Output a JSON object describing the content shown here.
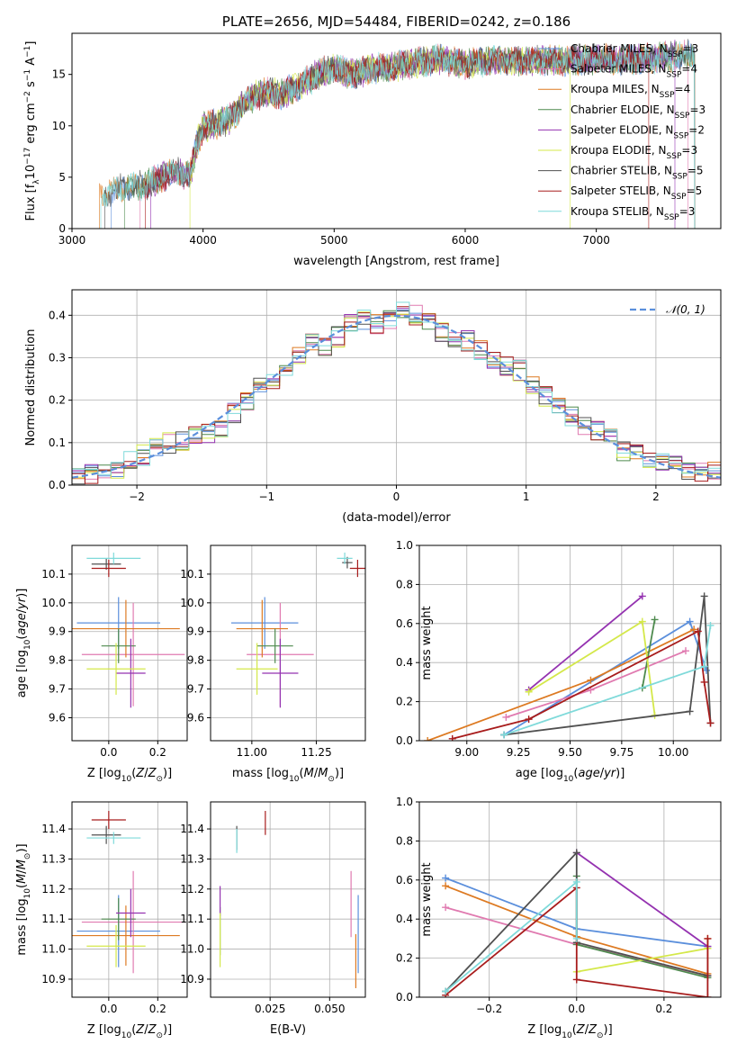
{
  "chart_data": [
    {
      "type": "line",
      "title": "PLATE=2656, MJD=54484, FIBERID=0242, z=0.186",
      "xlabel": "wavelength [Angstrom, rest frame]",
      "ylabel": "Flux [fλ10⁻¹⁷ erg cm⁻² s⁻¹ A⁻¹]",
      "xlim": [
        3000,
        7950
      ],
      "ylim": [
        0,
        19
      ],
      "xticks": [
        "3000",
        "4000",
        "5000",
        "6000",
        "7000"
      ],
      "yticks": [
        "0",
        "5",
        "10",
        "15"
      ],
      "legend_position": "right",
      "spectrum_envelope": {
        "x": [
          3210,
          3300,
          3400,
          3500,
          3600,
          3700,
          3800,
          3900,
          3950,
          4000,
          4100,
          4200,
          4300,
          4400,
          4500,
          4600,
          4700,
          4800,
          4900,
          5000,
          5100,
          5200,
          5300,
          5400,
          5500,
          5600,
          5700,
          5800,
          5900,
          6000,
          6200,
          6400,
          6600,
          6800,
          7000,
          7200,
          7400,
          7600,
          7750
        ],
        "y": [
          3.5,
          3.6,
          3.9,
          4.1,
          4.4,
          5.1,
          5.6,
          5.1,
          8.2,
          9.8,
          10.2,
          10.6,
          12.0,
          13.0,
          13.2,
          13.1,
          13.7,
          14.4,
          15.2,
          15.6,
          15.1,
          15.2,
          15.6,
          15.6,
          15.9,
          16.1,
          16.3,
          16.5,
          16.3,
          16.0,
          16.4,
          16.3,
          16.4,
          16.3,
          16.5,
          16.4,
          16.5,
          16.8,
          17.0
        ]
      },
      "series": [
        {
          "name": "Chabrier MILES",
          "nssp": "3",
          "color": "#5b8fdc"
        },
        {
          "name": "Salpeter MILES",
          "nssp": "4",
          "color": "#e07ab0"
        },
        {
          "name": "Kroupa MILES",
          "nssp": "4",
          "color": "#dd7a22"
        },
        {
          "name": "Chabrier ELODIE",
          "nssp": "3",
          "color": "#4e8a4e"
        },
        {
          "name": "Salpeter ELODIE",
          "nssp": "2",
          "color": "#9432b0"
        },
        {
          "name": "Kroupa ELODIE",
          "nssp": "3",
          "color": "#d4e84a"
        },
        {
          "name": "Chabrier STELIB",
          "nssp": "5",
          "color": "#505050"
        },
        {
          "name": "Salpeter STELIB",
          "nssp": "5",
          "color": "#a81c1c"
        },
        {
          "name": "Kroupa STELIB",
          "nssp": "3",
          "color": "#7fdada"
        }
      ]
    },
    {
      "type": "line",
      "title": "",
      "xlabel": "(data-model)/error",
      "ylabel": "Normed distribution",
      "xlim": [
        -2.5,
        2.5
      ],
      "ylim": [
        0,
        0.46
      ],
      "xticks": [
        "−2",
        "−1",
        "0",
        "1",
        "2"
      ],
      "yticks": [
        "0.0",
        "0.1",
        "0.2",
        "0.3",
        "0.4"
      ],
      "grid": true,
      "legend_position": "top-right",
      "reference_curve": "𝒩(0, 1)",
      "histogram_bin_edges": [
        -2.5,
        -2.4,
        -2.3,
        -2.2,
        -2.1,
        -2.0,
        -1.9,
        -1.8,
        -1.7,
        -1.6,
        -1.5,
        -1.4,
        -1.3,
        -1.2,
        -1.1,
        -1.0,
        -0.9,
        -0.8,
        -0.7,
        -0.6,
        -0.5,
        -0.4,
        -0.3,
        -0.2,
        -0.1,
        0.0,
        0.1,
        0.2,
        0.3,
        0.4,
        0.5,
        0.6,
        0.7,
        0.8,
        0.9,
        1.0,
        1.1,
        1.2,
        1.3,
        1.4,
        1.5,
        1.6,
        1.7,
        1.8,
        1.9,
        2.0,
        2.1,
        2.2,
        2.3,
        2.4,
        2.5
      ],
      "histogram_mean_values": [
        0.022,
        0.025,
        0.032,
        0.04,
        0.055,
        0.07,
        0.085,
        0.1,
        0.105,
        0.12,
        0.12,
        0.13,
        0.17,
        0.2,
        0.23,
        0.25,
        0.28,
        0.3,
        0.34,
        0.33,
        0.35,
        0.38,
        0.39,
        0.38,
        0.39,
        0.41,
        0.4,
        0.39,
        0.36,
        0.35,
        0.34,
        0.32,
        0.3,
        0.28,
        0.27,
        0.24,
        0.21,
        0.19,
        0.16,
        0.14,
        0.13,
        0.11,
        0.08,
        0.07,
        0.06,
        0.05,
        0.045,
        0.035,
        0.03,
        0.035
      ]
    },
    {
      "type": "scatter",
      "title": "",
      "xlabel": "Z [log₁₀(Z/Z⊙)]",
      "ylabel": "age  [log₁₀(age/yr)]",
      "xlim": [
        -0.15,
        0.32
      ],
      "ylim": [
        9.52,
        10.2
      ],
      "xticks": [
        "0.0",
        "0.2"
      ],
      "yticks": [
        "9.6",
        "9.7",
        "9.8",
        "9.9",
        "10.0",
        "10.1"
      ],
      "grid": true,
      "points": [
        {
          "series": "Chabrier MILES",
          "x": 0.04,
          "y": 9.93,
          "xerr": 0.17,
          "yerr": 0.09
        },
        {
          "series": "Salpeter MILES",
          "x": 0.1,
          "y": 9.82,
          "xerr": 0.21,
          "yerr": 0.18
        },
        {
          "series": "Kroupa MILES",
          "x": 0.07,
          "y": 9.91,
          "xerr": 0.22,
          "yerr": 0.1
        },
        {
          "series": "Chabrier ELODIE",
          "x": 0.04,
          "y": 9.85,
          "xerr": 0.07,
          "yerr": 0.06
        },
        {
          "series": "Salpeter ELODIE",
          "x": 0.09,
          "y": 9.755,
          "xerr": 0.06,
          "yerr": 0.12
        },
        {
          "series": "Kroupa ELODIE",
          "x": 0.03,
          "y": 9.77,
          "xerr": 0.12,
          "yerr": 0.09
        },
        {
          "series": "Chabrier STELIB",
          "x": -0.01,
          "y": 10.135,
          "xerr": 0.06,
          "yerr": 0.02
        },
        {
          "series": "Salpeter STELIB",
          "x": 0.0,
          "y": 10.12,
          "xerr": 0.07,
          "yerr": 0.03
        },
        {
          "series": "Kroupa STELIB",
          "x": 0.02,
          "y": 10.155,
          "xerr": 0.11,
          "yerr": 0.02
        }
      ]
    },
    {
      "type": "scatter",
      "title": "",
      "xlabel": "mass [log₁₀(M/M⊙)]",
      "ylabel": "",
      "xlim": [
        10.84,
        11.44
      ],
      "ylim": [
        9.52,
        10.2
      ],
      "xticks": [
        "11.00",
        "11.25"
      ],
      "yticks": [
        "9.6",
        "9.7",
        "9.8",
        "9.9",
        "10.0",
        "10.1"
      ],
      "grid": true,
      "points": [
        {
          "series": "Chabrier MILES",
          "x": 11.05,
          "y": 9.93,
          "xerr": 0.13,
          "yerr": 0.09
        },
        {
          "series": "Salpeter MILES",
          "x": 11.11,
          "y": 9.82,
          "xerr": 0.13,
          "yerr": 0.18
        },
        {
          "series": "Kroupa MILES",
          "x": 11.04,
          "y": 9.91,
          "xerr": 0.1,
          "yerr": 0.1
        },
        {
          "series": "Chabrier ELODIE",
          "x": 11.09,
          "y": 9.85,
          "xerr": 0.07,
          "yerr": 0.06
        },
        {
          "series": "Salpeter ELODIE",
          "x": 11.11,
          "y": 9.755,
          "xerr": 0.07,
          "yerr": 0.12
        },
        {
          "series": "Kroupa ELODIE",
          "x": 11.02,
          "y": 9.77,
          "xerr": 0.08,
          "yerr": 0.09
        },
        {
          "series": "Chabrier STELIB",
          "x": 11.37,
          "y": 10.14,
          "xerr": 0.02,
          "yerr": 0.02
        },
        {
          "series": "Salpeter STELIB",
          "x": 11.41,
          "y": 10.12,
          "xerr": 0.03,
          "yerr": 0.03
        },
        {
          "series": "Kroupa STELIB",
          "x": 11.36,
          "y": 10.155,
          "xerr": 0.03,
          "yerr": 0.02
        }
      ]
    },
    {
      "type": "line",
      "title": "",
      "xlabel": "age  [log₁₀(age/yr)]",
      "ylabel": "mass weight",
      "xlim": [
        8.77,
        10.23
      ],
      "ylim": [
        0,
        1
      ],
      "xticks": [
        "9.00",
        "9.25",
        "9.50",
        "9.75",
        "10.00"
      ],
      "yticks": [
        "0.0",
        "0.2",
        "0.4",
        "0.6",
        "0.8",
        "1.0"
      ],
      "grid": true,
      "series": [
        {
          "name": "Chabrier MILES",
          "x": [
            9.18,
            10.08,
            10.16
          ],
          "y": [
            0.03,
            0.61,
            0.36
          ]
        },
        {
          "name": "Salpeter MILES",
          "x": [
            9.19,
            9.6,
            10.06
          ],
          "y": [
            0.12,
            0.26,
            0.46
          ]
        },
        {
          "name": "Kroupa MILES",
          "x": [
            8.81,
            9.6,
            10.1
          ],
          "y": [
            0.0,
            0.31,
            0.57
          ]
        },
        {
          "name": "Chabrier ELODIE",
          "x": [
            9.85,
            9.91
          ],
          "y": [
            0.27,
            0.62
          ]
        },
        {
          "name": "Salpeter ELODIE",
          "x": [
            9.3,
            9.85
          ],
          "y": [
            0.26,
            0.74
          ]
        },
        {
          "name": "Kroupa ELODIE",
          "x": [
            9.3,
            9.85,
            9.91
          ],
          "y": [
            0.25,
            0.61,
            0.13
          ]
        },
        {
          "name": "Chabrier STELIB",
          "x": [
            9.18,
            10.08,
            10.15,
            10.18
          ],
          "y": [
            0.03,
            0.15,
            0.74,
            0.09
          ]
        },
        {
          "name": "Salpeter STELIB",
          "x": [
            8.93,
            9.3,
            10.12,
            10.15,
            10.18
          ],
          "y": [
            0.01,
            0.11,
            0.56,
            0.3,
            0.09
          ]
        },
        {
          "name": "Kroupa STELIB",
          "x": [
            9.18,
            10.15,
            10.18
          ],
          "y": [
            0.03,
            0.38,
            0.59
          ]
        }
      ]
    },
    {
      "type": "scatter",
      "title": "",
      "xlabel": "Z [log₁₀(Z/Z⊙)]",
      "ylabel": "mass [log₁₀(M/M⊙)]",
      "xlim": [
        -0.15,
        0.32
      ],
      "ylim": [
        10.84,
        11.49
      ],
      "xticks": [
        "0.0",
        "0.2"
      ],
      "yticks": [
        "10.9",
        "11.0",
        "11.1",
        "11.2",
        "11.3",
        "11.4"
      ],
      "grid": true,
      "points": [
        {
          "series": "Chabrier MILES",
          "x": 0.04,
          "y": 11.06,
          "xerr": 0.17,
          "yerr": 0.12
        },
        {
          "series": "Salpeter MILES",
          "x": 0.1,
          "y": 11.09,
          "xerr": 0.21,
          "yerr": 0.17
        },
        {
          "series": "Kroupa MILES",
          "x": 0.07,
          "y": 11.045,
          "xerr": 0.22,
          "yerr": 0.1
        },
        {
          "series": "Chabrier ELODIE",
          "x": 0.04,
          "y": 11.1,
          "xerr": 0.07,
          "yerr": 0.07
        },
        {
          "series": "Salpeter ELODIE",
          "x": 0.09,
          "y": 11.12,
          "xerr": 0.06,
          "yerr": 0.08
        },
        {
          "series": "Kroupa ELODIE",
          "x": 0.03,
          "y": 11.01,
          "xerr": 0.12,
          "yerr": 0.07
        },
        {
          "series": "Chabrier STELIB",
          "x": -0.01,
          "y": 11.38,
          "xerr": 0.06,
          "yerr": 0.03
        },
        {
          "series": "Salpeter STELIB",
          "x": 0.0,
          "y": 11.43,
          "xerr": 0.07,
          "yerr": 0.03
        },
        {
          "series": "Kroupa STELIB",
          "x": 0.02,
          "y": 11.37,
          "xerr": 0.11,
          "yerr": 0.02
        }
      ]
    },
    {
      "type": "scatter",
      "title": "",
      "xlabel": "E(B-V)",
      "ylabel": "",
      "xlim": [
        0.0,
        0.065
      ],
      "ylim": [
        10.84,
        11.49
      ],
      "xticks": [
        "0.025",
        "0.050"
      ],
      "yticks": [
        "10.9",
        "11.0",
        "11.1",
        "11.2",
        "11.3",
        "11.4"
      ],
      "grid": true,
      "points": [
        {
          "series": "Chabrier MILES",
          "x": 0.062,
          "y": 11.05,
          "yerr": 0.13
        },
        {
          "series": "Salpeter MILES",
          "x": 0.059,
          "y": 11.15,
          "yerr": 0.11
        },
        {
          "series": "Kroupa MILES",
          "x": 0.061,
          "y": 10.96,
          "yerr": 0.09
        },
        {
          "series": "Chabrier ELODIE",
          "x": 0.004,
          "y": 11.06,
          "yerr": 0.08
        },
        {
          "series": "Salpeter ELODIE",
          "x": 0.004,
          "y": 11.16,
          "yerr": 0.05
        },
        {
          "series": "Kroupa ELODIE",
          "x": 0.004,
          "y": 11.03,
          "yerr": 0.09
        },
        {
          "series": "Chabrier STELIB",
          "x": 0.011,
          "y": 11.37,
          "yerr": 0.04
        },
        {
          "series": "Salpeter STELIB",
          "x": 0.023,
          "y": 11.42,
          "yerr": 0.04
        },
        {
          "series": "Kroupa STELIB",
          "x": 0.011,
          "y": 11.36,
          "yerr": 0.04
        }
      ]
    },
    {
      "type": "line",
      "title": "",
      "xlabel": "Z [log₁₀(Z/Z⊙)]",
      "ylabel": "mass weight",
      "xlim": [
        -0.36,
        0.33
      ],
      "ylim": [
        0,
        1
      ],
      "xticks": [
        "−0.2",
        "0.0",
        "0.2"
      ],
      "yticks": [
        "0.0",
        "0.2",
        "0.4",
        "0.6",
        "0.8",
        "1.0"
      ],
      "grid": true,
      "series": [
        {
          "name": "Chabrier MILES",
          "x": [
            -0.3,
            0.0,
            0.3
          ],
          "y": [
            0.61,
            0.35,
            0.26
          ]
        },
        {
          "name": "Salpeter MILES",
          "x": [
            -0.3,
            0.0,
            0.3
          ],
          "y": [
            0.46,
            0.27,
            0.11
          ]
        },
        {
          "name": "Kroupa MILES",
          "x": [
            -0.3,
            0.0,
            0.3,
            0.3
          ],
          "y": [
            0.57,
            0.31,
            0.12,
            0.3
          ]
        },
        {
          "name": "Chabrier ELODIE",
          "x": [
            0.0,
            0.0,
            0.3
          ],
          "y": [
            0.62,
            0.27,
            0.1
          ]
        },
        {
          "name": "Salpeter ELODIE",
          "x": [
            0.0,
            0.3
          ],
          "y": [
            0.74,
            0.26
          ]
        },
        {
          "name": "Kroupa ELODIE",
          "x": [
            0.0,
            0.3
          ],
          "y": [
            0.13,
            0.25
          ]
        },
        {
          "name": "Chabrier STELIB",
          "x": [
            -0.3,
            0.0,
            0.0,
            0.3
          ],
          "y": [
            0.03,
            0.74,
            0.28,
            0.11
          ]
        },
        {
          "name": "Salpeter STELIB",
          "x": [
            -0.3,
            0.0,
            0.0,
            0.3,
            0.3
          ],
          "y": [
            0.01,
            0.56,
            0.09,
            0.0,
            0.3
          ]
        },
        {
          "name": "Kroupa STELIB",
          "x": [
            -0.3,
            0.0,
            0.0
          ],
          "y": [
            0.03,
            0.59,
            0.3
          ]
        }
      ]
    }
  ]
}
